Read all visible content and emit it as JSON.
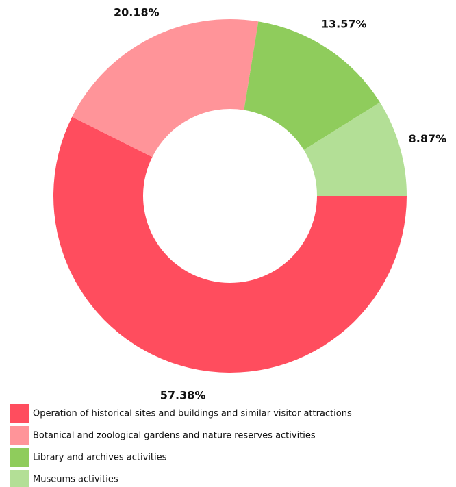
{
  "chart_data": {
    "type": "pie",
    "categories": [
      "Operation of historical sites and buildings and similar visitor attractions",
      "Botanical and zoological gardens and nature reserves activities",
      "Library and archives activities",
      "Museums activities"
    ],
    "values": [
      57.38,
      20.18,
      13.57,
      8.87
    ],
    "value_labels": [
      "57.38%",
      "20.18%",
      "13.57%",
      "8.87%"
    ],
    "colors": [
      "#ff4d5e",
      "#ff9499",
      "#8fcc5c",
      "#b3df96"
    ]
  }
}
